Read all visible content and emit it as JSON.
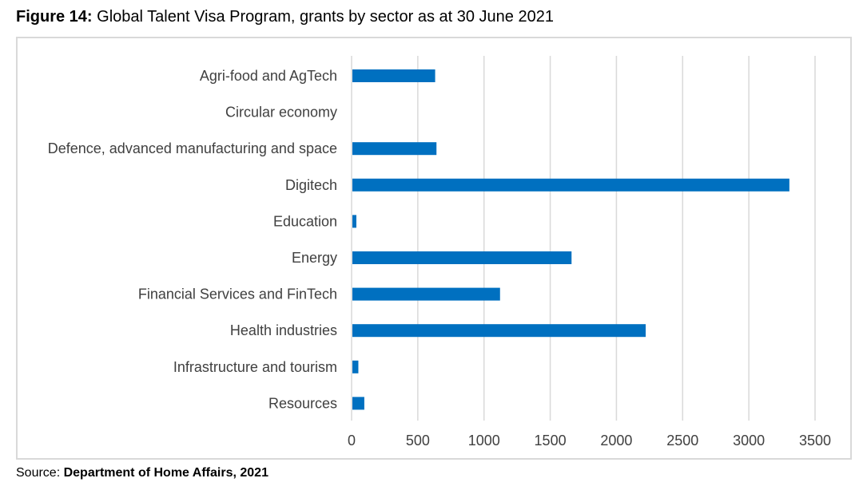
{
  "figure": {
    "label": "Figure 14:",
    "title": "Global Talent Visa Program, grants by sector as at 30 June 2021"
  },
  "source": {
    "label": "Source: ",
    "value": "Department of Home Affairs, 2021"
  },
  "chart_data": {
    "type": "bar",
    "orientation": "horizontal",
    "categories": [
      "Agri-food and AgTech",
      "Circular economy",
      "Defence, advanced manufacturing and space",
      "Digitech",
      "Education",
      "Energy",
      "Financial Services and FinTech",
      "Health industries",
      "Infrastructure and tourism",
      "Resources"
    ],
    "values": [
      625,
      0,
      635,
      3300,
      30,
      1655,
      1115,
      2215,
      45,
      90
    ],
    "xlim": [
      0,
      3500
    ],
    "xticks": [
      0,
      500,
      1000,
      1500,
      2000,
      2500,
      3000,
      3500
    ],
    "grid": "vertical",
    "legend": "none",
    "bar_color": "#0070C0",
    "grid_color": "#d9d9d9"
  }
}
